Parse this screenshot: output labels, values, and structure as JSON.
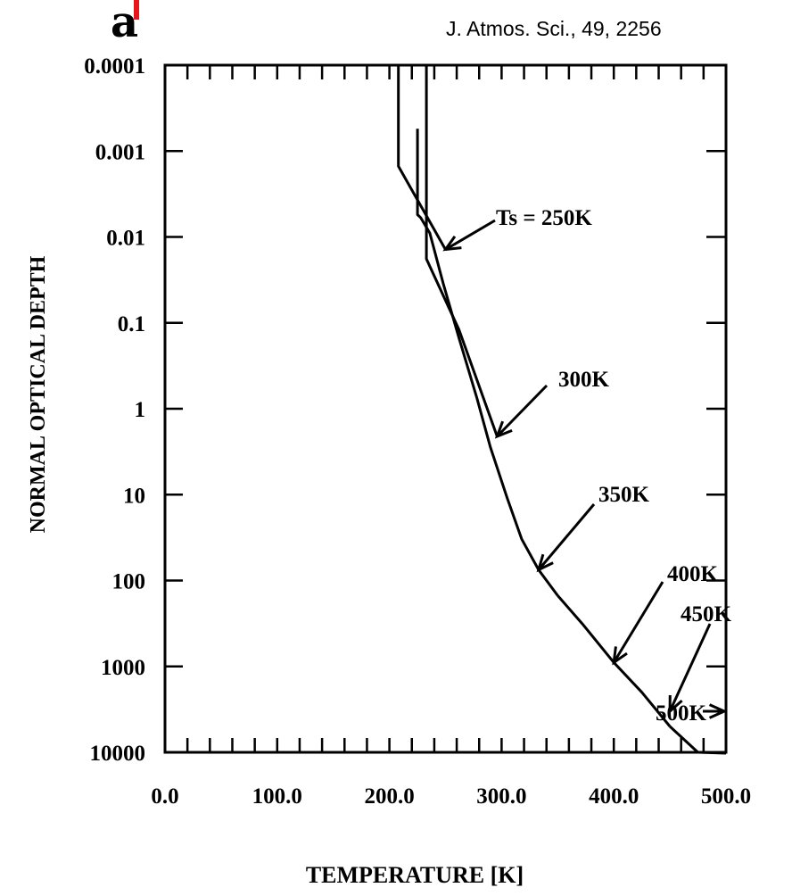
{
  "panel_label": "a",
  "citation": "J. Atmos. Sci., 49, 2256",
  "colors": {
    "accent_mark": "#e8151b",
    "ink": "#000000"
  },
  "chart_data": {
    "type": "line",
    "xlabel": "TEMPERATURE [K]",
    "ylabel": "NORMAL OPTICAL DEPTH",
    "xlim": [
      0,
      500
    ],
    "ylim": [
      0.0001,
      10000
    ],
    "y_scale": "log",
    "y_direction": "down",
    "x_ticks": [
      "0.0",
      "100.0",
      "200.0",
      "300.0",
      "400.0",
      "500.0"
    ],
    "y_ticks": [
      "0.0001",
      "0.001",
      "0.01",
      "0.1",
      "1",
      "10",
      "100",
      "1000",
      "10000"
    ],
    "grid": false,
    "series": [
      {
        "name": "Ts = 250K",
        "x": [
          208,
          208,
          250
        ],
        "y": [
          0.0001,
          0.0015,
          0.014
        ]
      },
      {
        "name": "300K",
        "x": [
          233,
          233,
          262,
          296
        ],
        "y": [
          0.0001,
          0.018,
          0.12,
          2.1
        ]
      },
      {
        "name": "350K",
        "x": [
          225,
          225,
          228,
          236,
          248,
          262,
          278,
          290,
          305,
          318,
          333,
          350
        ],
        "y": [
          0.00055,
          0.0055,
          0.006,
          0.009,
          0.035,
          0.15,
          0.75,
          2.8,
          11,
          33,
          75,
          150
        ]
      },
      {
        "name": "400K",
        "x": [
          350,
          372,
          400
        ],
        "y": [
          150,
          320,
          900
        ]
      },
      {
        "name": "450K",
        "x": [
          400,
          425,
          450
        ],
        "y": [
          900,
          2000,
          5000
        ]
      },
      {
        "name": "500K",
        "x": [
          450,
          475,
          500
        ],
        "y": [
          5000,
          10000,
          20000
        ]
      }
    ],
    "annotations": [
      {
        "label": "Ts = 250K",
        "x": 250,
        "y": 0.014
      },
      {
        "label": "300K",
        "x": 296,
        "y": 2.1
      },
      {
        "label": "350K",
        "x": 333,
        "y": 75
      },
      {
        "label": "400K",
        "x": 400,
        "y": 900
      },
      {
        "label": "450K",
        "x": 450,
        "y": 5000
      },
      {
        "label": "500K",
        "x": 500,
        "y": 20000
      }
    ]
  }
}
